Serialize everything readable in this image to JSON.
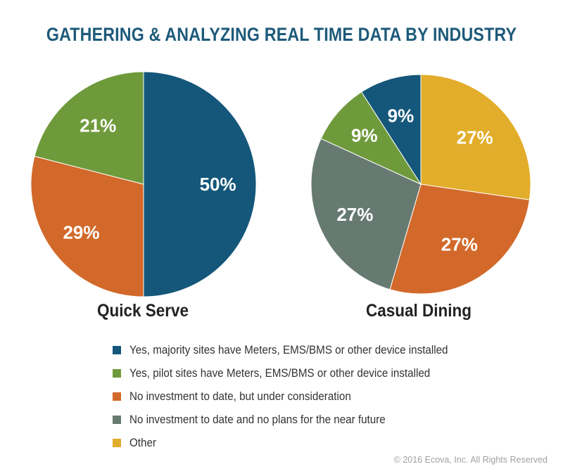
{
  "title": "GATHERING & ANALYZING REAL TIME DATA BY INDUSTRY",
  "copyright": "© 2016 Ecova, Inc. All Rights Reserved",
  "colors": {
    "majority": "#14577a",
    "pilot": "#6f9a3c",
    "no_invest_consider": "#d2692a",
    "no_invest_no_plans": "#677a72",
    "other": "#e2ad2a"
  },
  "legend": [
    {
      "label": "Yes, majority sites have Meters, EMS/BMS or other device installed",
      "color": "#14577a"
    },
    {
      "label": "Yes, pilot sites have Meters, EMS/BMS or other device installed",
      "color": "#6f9a3c"
    },
    {
      "label": "No investment to date, but under consideration",
      "color": "#d2692a"
    },
    {
      "label": "No investment to date and no plans for the near future",
      "color": "#677a72"
    },
    {
      "label": "Other",
      "color": "#e2ad2a"
    }
  ],
  "chart_data": [
    {
      "type": "pie",
      "title": "Quick Serve",
      "slices": [
        {
          "category": "Yes, majority sites have Meters, EMS/BMS or other device installed",
          "value": 50,
          "label": "50%",
          "color": "#14577a"
        },
        {
          "category": "No investment to date, but under consideration",
          "value": 29,
          "label": "29%",
          "color": "#d2692a"
        },
        {
          "category": "Yes, pilot sites have Meters, EMS/BMS or other device installed",
          "value": 21,
          "label": "21%",
          "color": "#6f9a3c"
        }
      ]
    },
    {
      "type": "pie",
      "title": "Casual Dining",
      "slices": [
        {
          "category": "Other",
          "value": 27,
          "label": "27%",
          "color": "#e2ad2a"
        },
        {
          "category": "No investment to date, but under consideration",
          "value": 27,
          "label": "27%",
          "color": "#d2692a"
        },
        {
          "category": "No investment to date and no plans for the near future",
          "value": 27,
          "label": "27%",
          "color": "#677a72"
        },
        {
          "category": "Yes, pilot sites have Meters, EMS/BMS or other device installed",
          "value": 9,
          "label": "9%",
          "color": "#6f9a3c"
        },
        {
          "category": "Yes, majority sites have Meters, EMS/BMS or other device installed",
          "value": 9,
          "label": "9%",
          "color": "#14577a"
        }
      ]
    }
  ]
}
